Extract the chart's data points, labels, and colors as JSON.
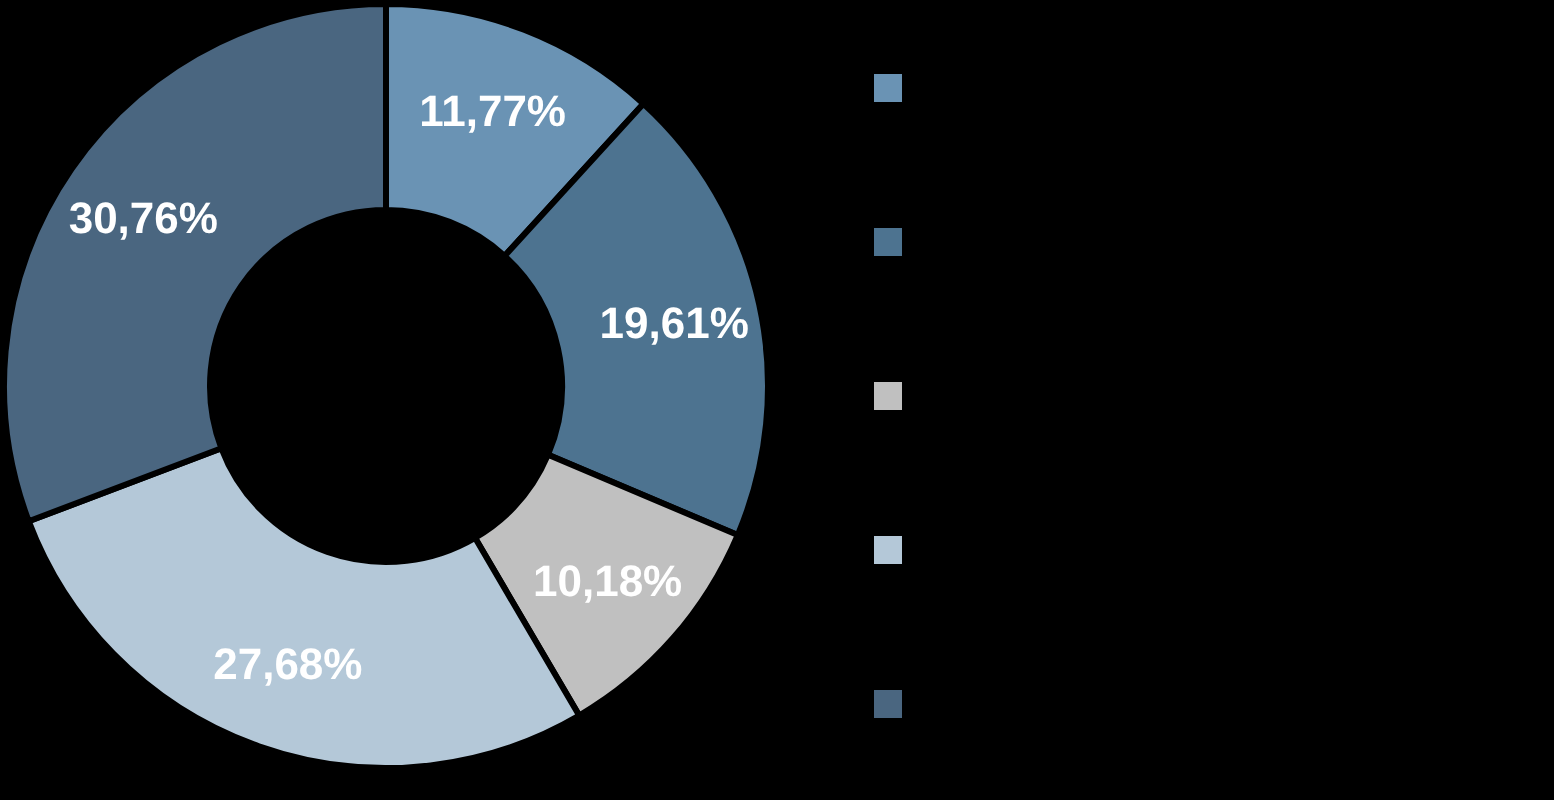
{
  "chart_data": {
    "type": "donut",
    "categories": [
      null,
      null,
      null,
      null,
      null
    ],
    "values": [
      11.77,
      19.61,
      10.18,
      27.68,
      30.76
    ],
    "colors": [
      "#6a93b4",
      "#4d7390",
      "#c0c0c0",
      "#b4c8d8",
      "#4a6680"
    ],
    "value_labels": [
      "11,77%",
      "19,61%",
      "10,18%",
      "27,68%",
      "30,76%"
    ]
  }
}
